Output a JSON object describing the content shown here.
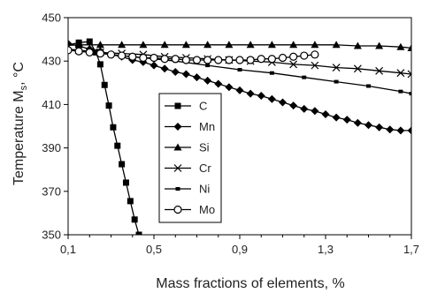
{
  "chart_data": {
    "type": "line",
    "xlabel": "Mass fractions of elements, %",
    "ylabel_main": "Temperature M",
    "ylabel_sub": "s",
    "ylabel_unit": ", °C",
    "xlim": [
      0.1,
      1.7
    ],
    "ylim": [
      350,
      450
    ],
    "xticks": [
      "0,1",
      "0,5",
      "0,9",
      "1,3",
      "1,7"
    ],
    "xtick_values": [
      0.1,
      0.5,
      0.9,
      1.3,
      1.7
    ],
    "yticks": [
      "350",
      "370",
      "390",
      "410",
      "430",
      "450"
    ],
    "ytick_values": [
      350,
      370,
      390,
      410,
      430,
      450
    ],
    "grid": false,
    "legend_position": "center",
    "series": [
      {
        "name": "C",
        "marker": "square",
        "x": [
          0.04,
          0.15,
          0.2,
          0.23,
          0.25,
          0.27,
          0.29,
          0.31,
          0.33,
          0.35,
          0.37,
          0.39,
          0.41,
          0.43
        ],
        "y": [
          436,
          438.5,
          439,
          434,
          428.5,
          419,
          409.5,
          399.5,
          391,
          382.5,
          374,
          365.5,
          357,
          350
        ]
      },
      {
        "name": "Mn",
        "marker": "diamond",
        "x": [
          0.04,
          0.1,
          0.15,
          0.2,
          0.25,
          0.3,
          0.35,
          0.4,
          0.45,
          0.5,
          0.55,
          0.6,
          0.65,
          0.7,
          0.75,
          0.8,
          0.85,
          0.9,
          0.95,
          1.0,
          1.05,
          1.1,
          1.15,
          1.2,
          1.25,
          1.3,
          1.35,
          1.4,
          1.45,
          1.5,
          1.55,
          1.6,
          1.65,
          1.7
        ],
        "y": [
          440,
          438,
          437,
          435.5,
          434.5,
          433,
          432,
          430.5,
          429.5,
          428,
          426.5,
          425,
          424,
          422.5,
          421,
          419.5,
          418,
          416.5,
          415,
          414,
          412.5,
          411,
          409.5,
          408,
          407,
          405.5,
          404,
          403,
          401.5,
          400.5,
          399.5,
          398.5,
          398,
          398
        ]
      },
      {
        "name": "Si",
        "marker": "triangle",
        "x": [
          0.04,
          0.15,
          0.25,
          0.35,
          0.45,
          0.55,
          0.65,
          0.75,
          0.85,
          0.95,
          1.05,
          1.15,
          1.25,
          1.35,
          1.45,
          1.55,
          1.65,
          1.7
        ],
        "y": [
          437,
          437.5,
          437.5,
          437.5,
          437.5,
          437.5,
          437.5,
          437.5,
          437.5,
          437.5,
          437.5,
          437.5,
          437.5,
          437.5,
          437,
          437,
          436.5,
          436
        ]
      },
      {
        "name": "Cr",
        "marker": "cross",
        "x": [
          0.04,
          0.15,
          0.25,
          0.35,
          0.45,
          0.55,
          0.65,
          0.75,
          0.85,
          0.95,
          1.05,
          1.15,
          1.25,
          1.35,
          1.45,
          1.55,
          1.65,
          1.7
        ],
        "y": [
          436,
          435,
          434,
          433.5,
          433,
          432,
          431.5,
          431,
          430.5,
          430,
          429.5,
          428.5,
          428,
          427,
          426.5,
          425.5,
          424.5,
          424
        ]
      },
      {
        "name": "Ni",
        "marker": "square-small",
        "x": [
          0.04,
          0.15,
          0.3,
          0.45,
          0.6,
          0.75,
          0.9,
          1.05,
          1.2,
          1.35,
          1.5,
          1.65,
          1.7
        ],
        "y": [
          436,
          435,
          433,
          431.5,
          430,
          428,
          426,
          424.5,
          422.5,
          420.5,
          418.5,
          416,
          415
        ]
      },
      {
        "name": "Mo",
        "marker": "circle",
        "x": [
          0.04,
          0.1,
          0.15,
          0.2,
          0.25,
          0.3,
          0.35,
          0.4,
          0.45,
          0.5,
          0.55,
          0.6,
          0.65,
          0.7,
          0.75,
          0.8,
          0.85,
          0.9,
          0.95,
          1.0,
          1.05,
          1.1,
          1.15,
          1.2,
          1.25
        ],
        "y": [
          435,
          435,
          434.5,
          434,
          433.5,
          433,
          432.5,
          432,
          431.5,
          431.5,
          431,
          431,
          430.5,
          430.5,
          430.5,
          430.5,
          430.5,
          430.5,
          430.5,
          431,
          431,
          431.5,
          432,
          432.5,
          433
        ]
      }
    ]
  }
}
